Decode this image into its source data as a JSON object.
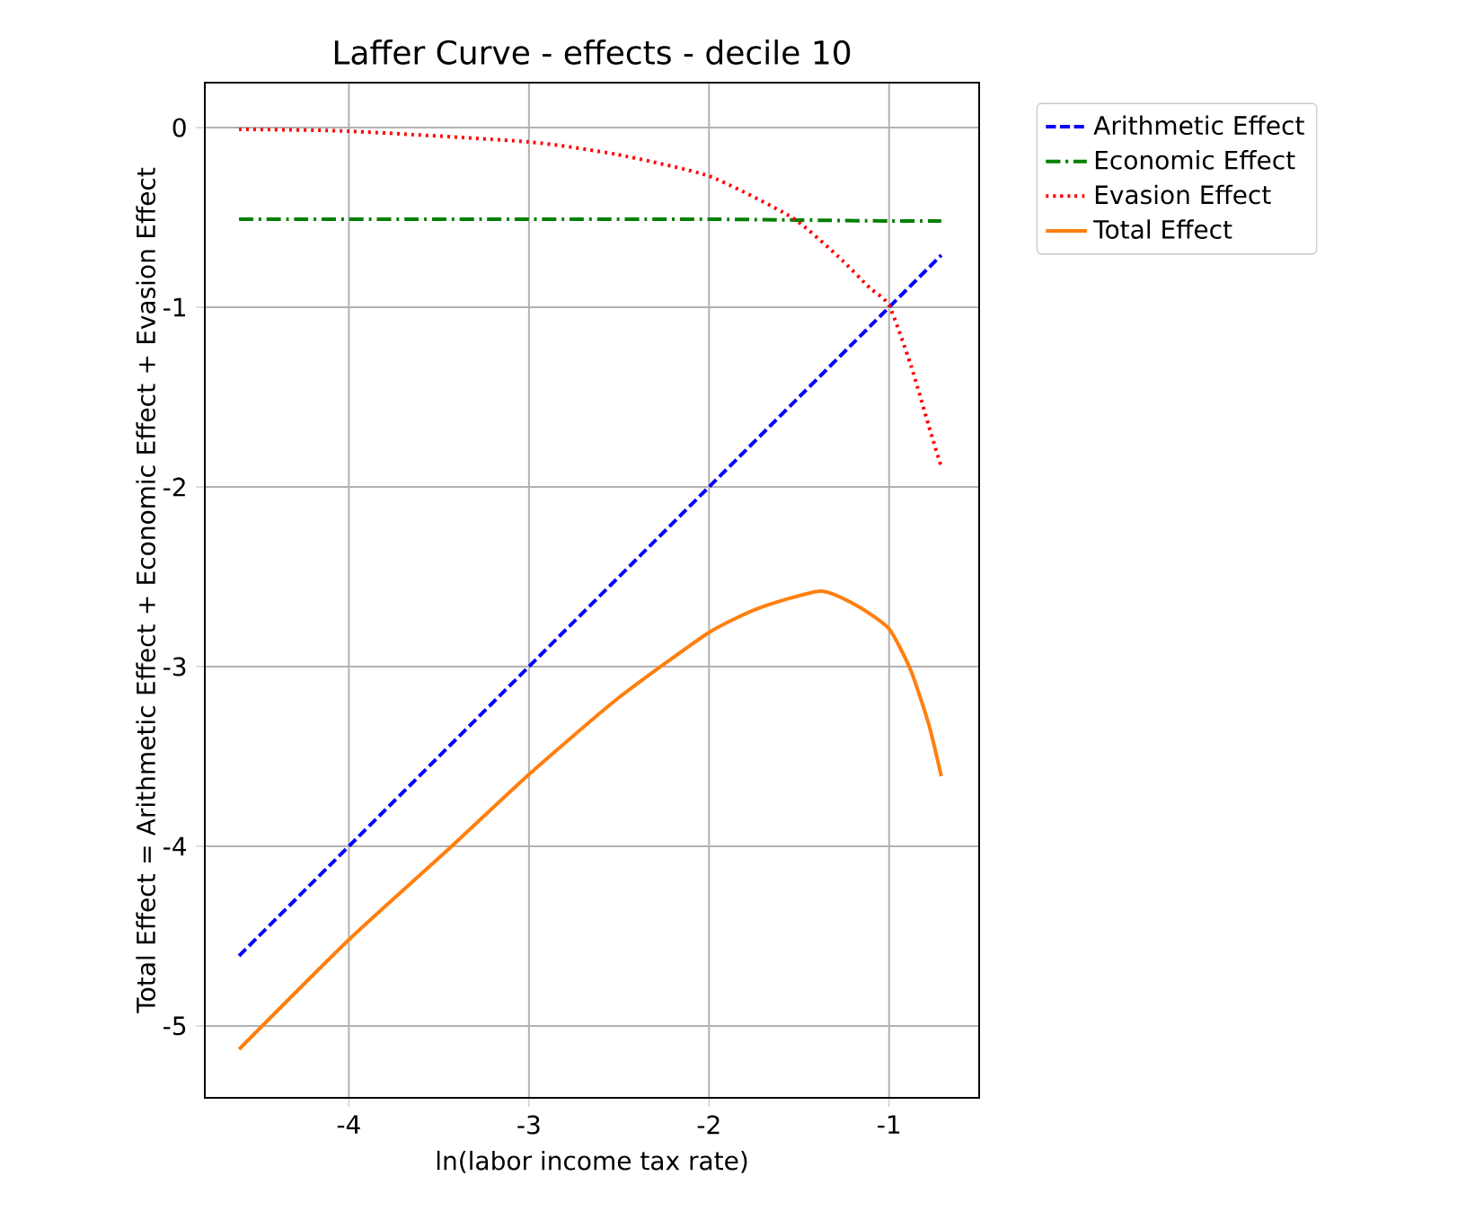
{
  "chart_data": {
    "type": "line",
    "title": "Laffer Curve - effects - decile 10",
    "xlabel": "ln(labor income tax rate)",
    "ylabel": "Total Effect = Arithmetic Effect + Economic Effect + Evasion Effect",
    "xlim": [
      -4.8,
      -0.5
    ],
    "ylim": [
      -5.4,
      0.25
    ],
    "xticks": [
      -4,
      -3,
      -2,
      -1
    ],
    "yticks": [
      -5,
      -4,
      -3,
      -2,
      -1,
      0
    ],
    "grid": true,
    "legend": "top right",
    "series": [
      {
        "name": "Arithmetic Effect",
        "color": "#0000ff",
        "line_style": "dashed",
        "x": [
          -4.61,
          -0.71
        ],
        "values": [
          -4.61,
          -0.71
        ]
      },
      {
        "name": "Economic Effect",
        "color": "#008000",
        "line_style": "dashdot",
        "x": [
          -4.61,
          -3,
          -2,
          -1,
          -0.71
        ],
        "values": [
          -0.51,
          -0.51,
          -0.51,
          -0.52,
          -0.52
        ]
      },
      {
        "name": "Evasion Effect",
        "color": "#ff0000",
        "line_style": "dotted",
        "x": [
          -4.61,
          -4,
          -3,
          -2.51,
          -2,
          -1.54,
          -1.28,
          -1.11,
          -1,
          -0.88,
          -0.78,
          -0.71
        ],
        "values": [
          -0.01,
          -0.02,
          -0.08,
          -0.15,
          -0.27,
          -0.5,
          -0.72,
          -0.89,
          -0.99,
          -1.32,
          -1.66,
          -1.89
        ]
      },
      {
        "name": "Total Effect",
        "color": "#ff7f0e",
        "line_style": "solid",
        "x": [
          -4.61,
          -4,
          -3.44,
          -3,
          -2.51,
          -2,
          -1.71,
          -1.38,
          -1.18,
          -1,
          -0.88,
          -0.78,
          -0.71
        ],
        "values": [
          -5.13,
          -4.52,
          -4.01,
          -3.6,
          -3.18,
          -2.81,
          -2.67,
          -2.58,
          -2.66,
          -2.79,
          -3.02,
          -3.32,
          -3.61
        ]
      }
    ]
  }
}
